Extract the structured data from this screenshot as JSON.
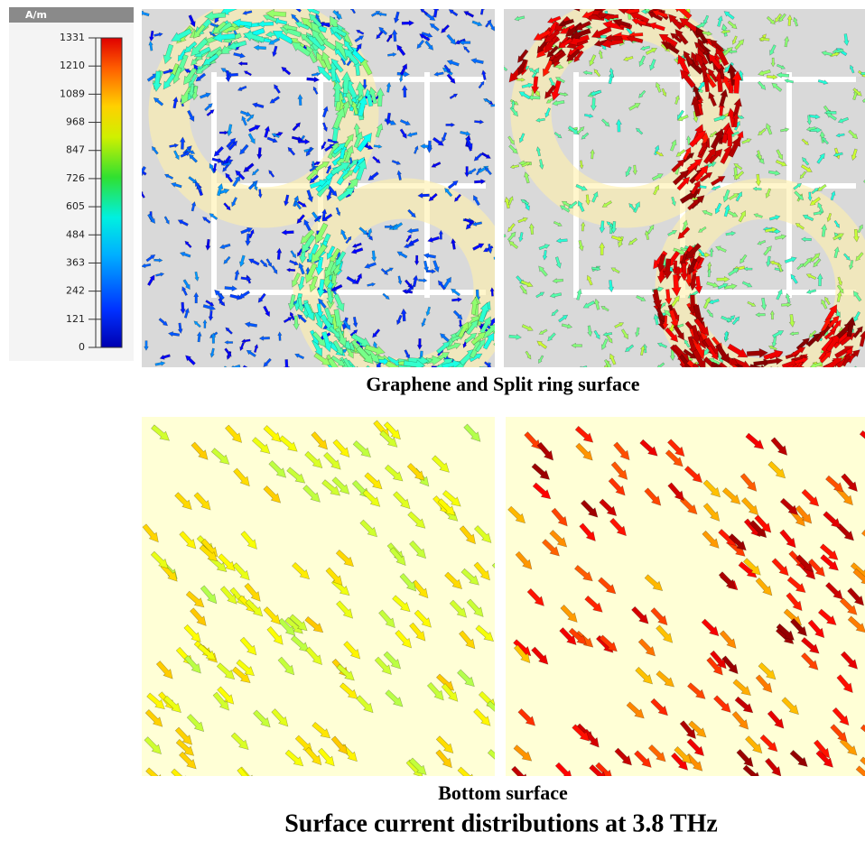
{
  "colorbar": {
    "unit": "A/m",
    "ticks": [
      1331,
      1210,
      1089,
      968,
      847,
      726,
      605,
      484,
      363,
      242,
      121,
      0
    ]
  },
  "captions": {
    "top": "Graphene and Split ring surface",
    "bottom": "Bottom surface",
    "figure": "Surface current distributions at 3.8 THz"
  }
}
